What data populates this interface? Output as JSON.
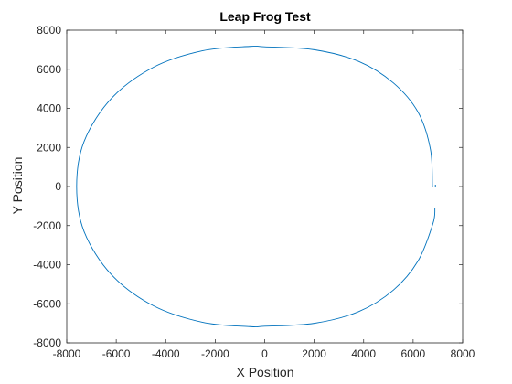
{
  "chart_data": {
    "type": "line",
    "title": "Leap Frog Test",
    "xlabel": "X Position",
    "ylabel": "Y Position",
    "xlim": [
      -8000,
      8000
    ],
    "ylim": [
      -8000,
      8000
    ],
    "xticks": [
      -8000,
      -6000,
      -4000,
      -2000,
      0,
      2000,
      4000,
      6000,
      8000
    ],
    "yticks": [
      -8000,
      -6000,
      -4000,
      -2000,
      0,
      2000,
      4000,
      6000,
      8000
    ],
    "grid": false,
    "series": [
      {
        "color": "#0072bd",
        "x": [
          6880,
          6800,
          6200,
          5200,
          3800,
          2000,
          0,
          -600,
          -2500,
          -4500,
          -6200,
          -7300,
          -7600,
          -7300,
          -6200,
          -4500,
          -2500,
          -600,
          0,
          2000,
          3800,
          5200,
          6200,
          6700,
          6780
        ],
        "y": [
          -1100,
          -1900,
          -3800,
          -5300,
          -6400,
          -7000,
          -7150,
          -7170,
          -6950,
          -6100,
          -4500,
          -2300,
          0,
          2300,
          4500,
          6100,
          6950,
          7170,
          7150,
          7000,
          6400,
          5300,
          3800,
          1900,
          0
        ]
      }
    ],
    "stray_point": {
      "x": 6900,
      "y": 0
    }
  }
}
